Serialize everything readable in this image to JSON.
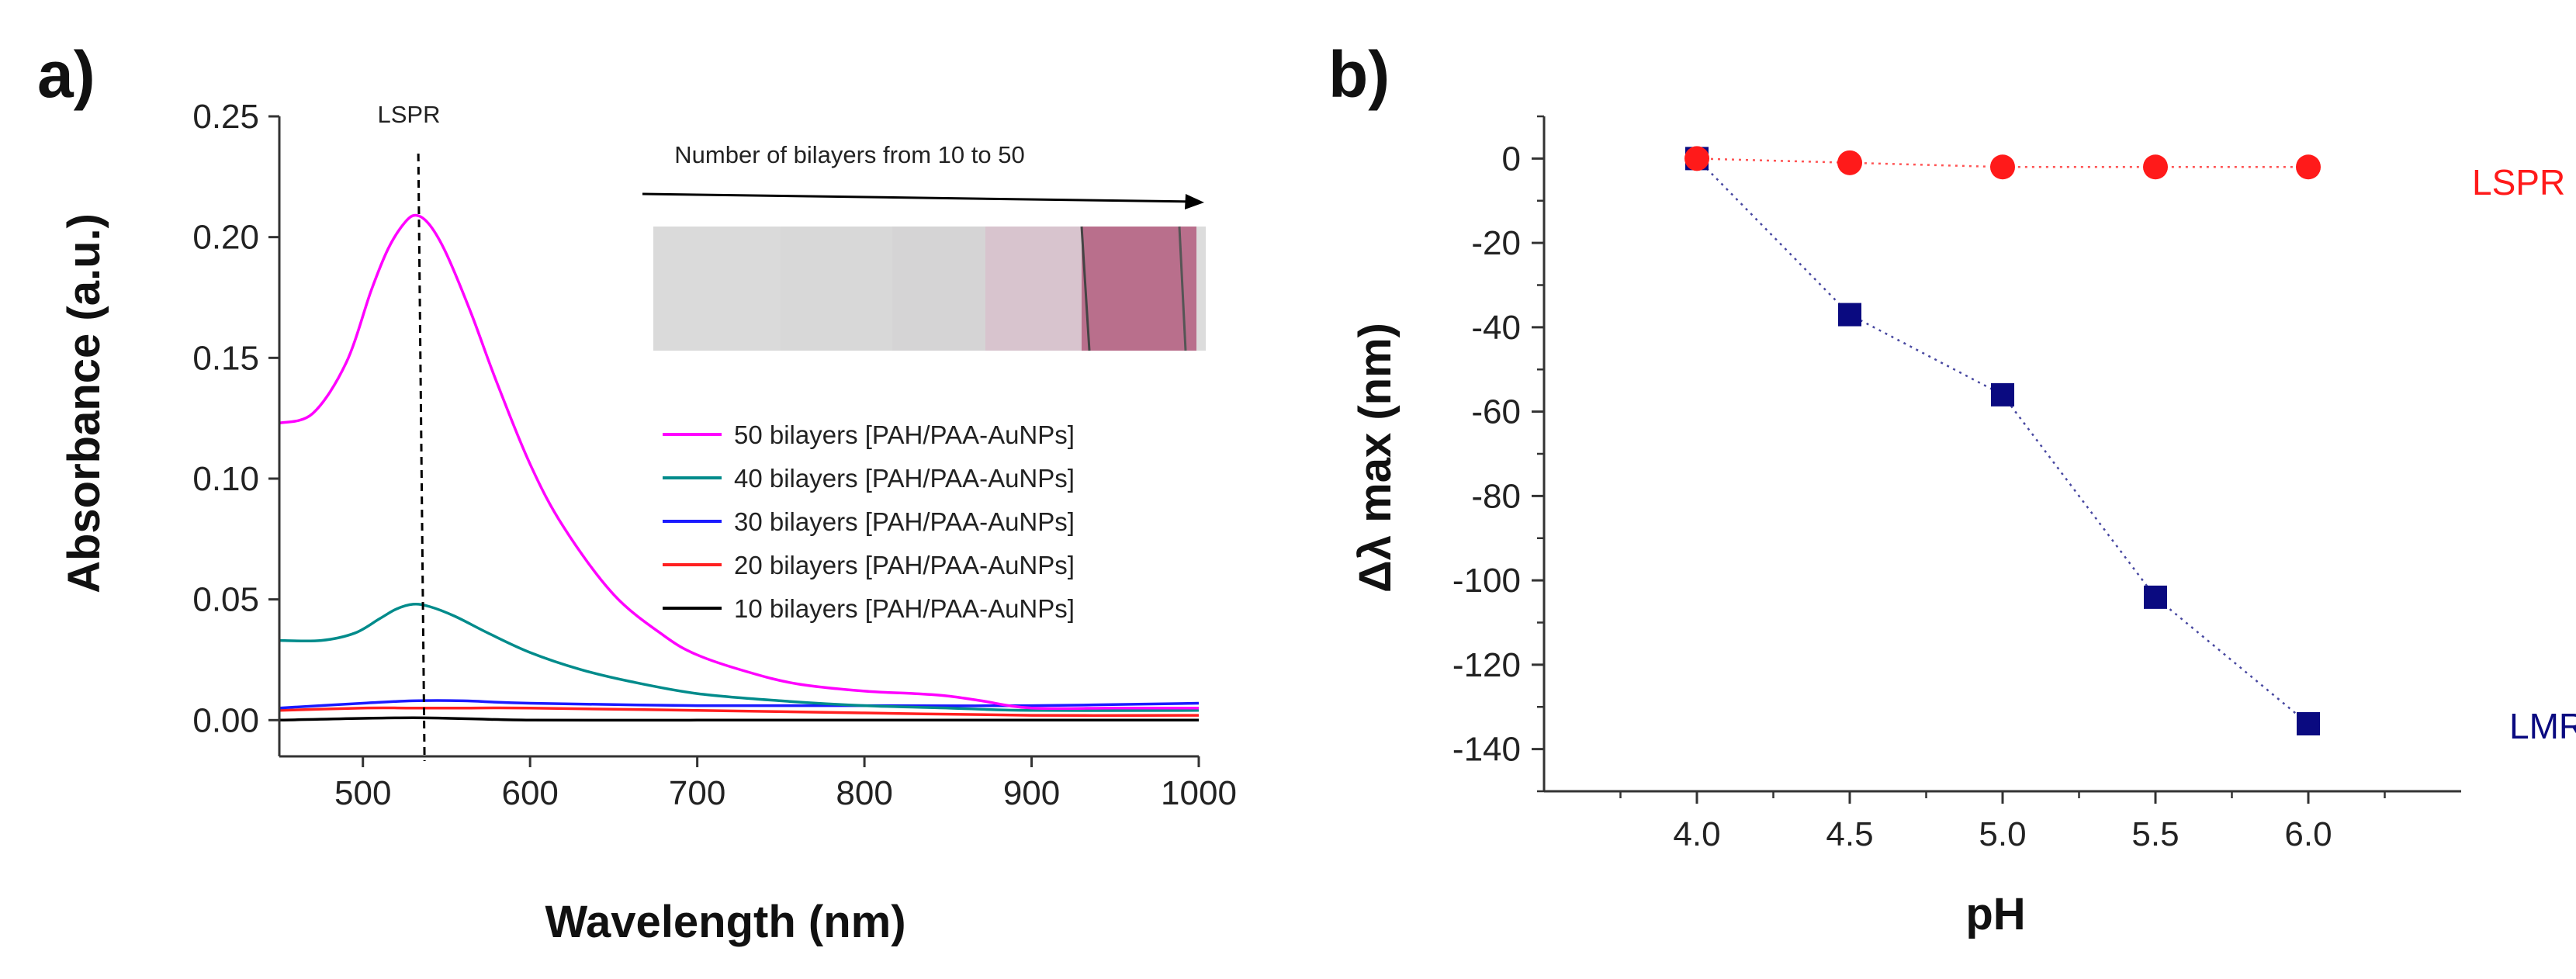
{
  "panels": {
    "a": "a)",
    "b": "b)"
  },
  "chart_data": [
    {
      "type": "line",
      "title": "",
      "xlabel": "Wavelength (nm)",
      "ylabel": "Absorbance (a.u.)",
      "xlim": [
        450,
        1000
      ],
      "ylim": [
        -0.015,
        0.25
      ],
      "xticks": [
        500,
        600,
        700,
        800,
        900,
        1000
      ],
      "yticks": [
        0.0,
        0.05,
        0.1,
        0.15,
        0.2,
        0.25
      ],
      "ytick_labels": [
        "0.00",
        "0.05",
        "0.10",
        "0.15",
        "0.20",
        "0.25"
      ],
      "annotation": {
        "text": "LSPR",
        "x": 535
      },
      "inset": {
        "caption": "Number of bilayers from 10 to 50",
        "strip_colors": [
          "#dadada",
          "#d8d8d8",
          "#d5d4d5",
          "#d8c4ce",
          "#b96f8c"
        ]
      },
      "series": [
        {
          "name": "50 bilayers [PAH/PAA-AuNPs]",
          "color": "#ff00ff",
          "x": [
            450,
            470,
            490,
            505,
            515,
            525,
            532,
            540,
            550,
            565,
            580,
            600,
            620,
            650,
            680,
            700,
            730,
            760,
            800,
            830,
            850,
            870,
            900,
            950,
            1000
          ],
          "y": [
            0.123,
            0.127,
            0.148,
            0.178,
            0.195,
            0.206,
            0.209,
            0.205,
            0.193,
            0.168,
            0.14,
            0.106,
            0.08,
            0.052,
            0.035,
            0.027,
            0.02,
            0.015,
            0.012,
            0.011,
            0.01,
            0.008,
            0.005,
            0.005,
            0.005
          ]
        },
        {
          "name": "40 bilayers [PAH/PAA-AuNPs]",
          "color": "#008b8b",
          "x": [
            450,
            475,
            495,
            510,
            520,
            530,
            540,
            555,
            575,
            600,
            630,
            660,
            700,
            750,
            800,
            850,
            900,
            1000
          ],
          "y": [
            0.033,
            0.033,
            0.036,
            0.042,
            0.046,
            0.048,
            0.047,
            0.043,
            0.036,
            0.028,
            0.021,
            0.016,
            0.011,
            0.008,
            0.006,
            0.005,
            0.004,
            0.004
          ]
        },
        {
          "name": "30 bilayers [PAH/PAA-AuNPs]",
          "color": "#1a1aff",
          "x": [
            450,
            500,
            530,
            560,
            600,
            700,
            800,
            900,
            1000
          ],
          "y": [
            0.005,
            0.007,
            0.008,
            0.008,
            0.007,
            0.006,
            0.006,
            0.006,
            0.007
          ]
        },
        {
          "name": "20 bilayers [PAH/PAA-AuNPs]",
          "color": "#ff2020",
          "x": [
            450,
            500,
            530,
            560,
            600,
            700,
            800,
            900,
            1000
          ],
          "y": [
            0.004,
            0.005,
            0.005,
            0.005,
            0.005,
            0.004,
            0.003,
            0.002,
            0.002
          ]
        },
        {
          "name": "10 bilayers [PAH/PAA-AuNPs]",
          "color": "#000000",
          "x": [
            450,
            530,
            600,
            700,
            800,
            900,
            1000
          ],
          "y": [
            0.0,
            0.001,
            0.0,
            0.0,
            0.0,
            0.0,
            0.0
          ]
        }
      ]
    },
    {
      "type": "scatter",
      "title": "",
      "xlabel": "pH",
      "ylabel": "Δλ max (nm)",
      "xlim": [
        3.5,
        6.5
      ],
      "ylim": [
        -150,
        10
      ],
      "xticks": [
        4.0,
        4.5,
        5.0,
        5.5,
        6.0
      ],
      "xtick_labels": [
        "4.0",
        "4.5",
        "5.0",
        "5.5",
        "6.0"
      ],
      "yticks": [
        0,
        -20,
        -40,
        -60,
        -80,
        -100,
        -120,
        -140
      ],
      "series": [
        {
          "name": "LSPR",
          "color": "#ff1a1a",
          "marker": "circle",
          "x": [
            4.0,
            4.5,
            5.0,
            5.5,
            6.0
          ],
          "y": [
            0,
            -1,
            -2,
            -2,
            -2
          ]
        },
        {
          "name": "LMR",
          "color": "#0a0a80",
          "marker": "square",
          "x": [
            4.0,
            4.5,
            5.0,
            5.5,
            6.0
          ],
          "y": [
            0,
            -37,
            -56,
            -104,
            -134
          ]
        }
      ]
    }
  ]
}
